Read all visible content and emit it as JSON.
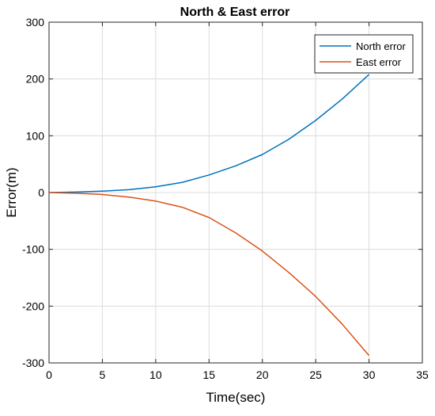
{
  "chart_data": {
    "type": "line",
    "title": "North & East error",
    "xlabel": "Time(sec)",
    "ylabel": "Error(m)",
    "xlim": [
      0,
      35
    ],
    "ylim": [
      -300,
      300
    ],
    "xticks": [
      0,
      5,
      10,
      15,
      20,
      25,
      30,
      35
    ],
    "yticks": [
      -300,
      -200,
      -100,
      0,
      100,
      200,
      300
    ],
    "grid": true,
    "legend_position": "top-right",
    "series": [
      {
        "name": "North error",
        "color": "#0072BD",
        "x": [
          0,
          2.5,
          5,
          7.5,
          10,
          12.5,
          15,
          17.5,
          20,
          22.5,
          25,
          27.5,
          30
        ],
        "y": [
          0,
          0.9,
          2.5,
          5,
          10,
          18,
          31,
          47,
          67,
          94,
          127,
          165,
          208
        ]
      },
      {
        "name": "East error",
        "color": "#D95319",
        "x": [
          0,
          2.5,
          5,
          7.5,
          10,
          12.5,
          15,
          17.5,
          20,
          22.5,
          25,
          27.5,
          30
        ],
        "y": [
          0,
          -1.2,
          -3.5,
          -8,
          -15,
          -26,
          -44,
          -71,
          -103,
          -141,
          -183,
          -232,
          -287
        ]
      }
    ]
  }
}
